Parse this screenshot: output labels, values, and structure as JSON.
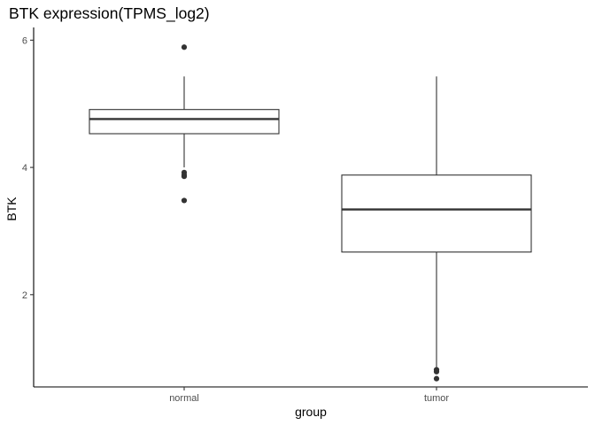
{
  "chart_data": {
    "type": "boxplot",
    "title": "BTK expression(TPMS_log2)",
    "xlabel": "group",
    "ylabel": "BTK",
    "categories": [
      "normal",
      "tumor"
    ],
    "ylim": [
      0.55,
      6.2
    ],
    "yticks": [
      2,
      4,
      6
    ],
    "grid": false,
    "legend": "none",
    "colors": {
      "box_fill": "#ffffff",
      "box_stroke": "#333333",
      "point": "#333333",
      "axis": "#000000",
      "tick_label": "#4d4d4d"
    },
    "boxes": [
      {
        "group": "normal",
        "whisker_low": 4.0,
        "q1": 4.53,
        "median": 4.76,
        "q3": 4.91,
        "whisker_high": 5.43,
        "outliers": [
          5.89,
          3.92,
          3.88,
          3.86,
          3.48
        ]
      },
      {
        "group": "tumor",
        "whisker_low": 0.83,
        "q1": 2.67,
        "median": 3.34,
        "q3": 3.88,
        "whisker_high": 5.43,
        "outliers": [
          0.82,
          0.79,
          0.68
        ]
      }
    ]
  }
}
